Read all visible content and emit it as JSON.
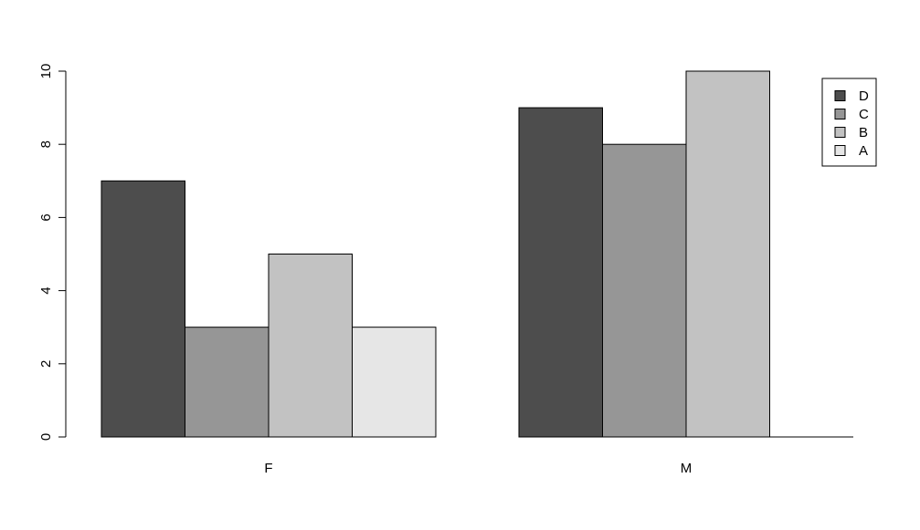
{
  "chart_data": {
    "type": "bar",
    "layout": "grouped",
    "categories": [
      "F",
      "M"
    ],
    "series": [
      {
        "name": "D",
        "values": [
          7,
          9
        ],
        "color": "#4d4d4d"
      },
      {
        "name": "C",
        "values": [
          3,
          8
        ],
        "color": "#969696"
      },
      {
        "name": "B",
        "values": [
          5,
          10
        ],
        "color": "#c2c2c2"
      },
      {
        "name": "A",
        "values": [
          3,
          0
        ],
        "color": "#e6e6e6"
      }
    ],
    "ylim": [
      0,
      10
    ],
    "yticks": [
      0,
      2,
      4,
      6,
      8,
      10
    ],
    "title": "",
    "xlabel": "",
    "ylabel": "",
    "grid": false,
    "legend": {
      "position": "top-right",
      "order": [
        "D",
        "C",
        "B",
        "A"
      ]
    }
  }
}
